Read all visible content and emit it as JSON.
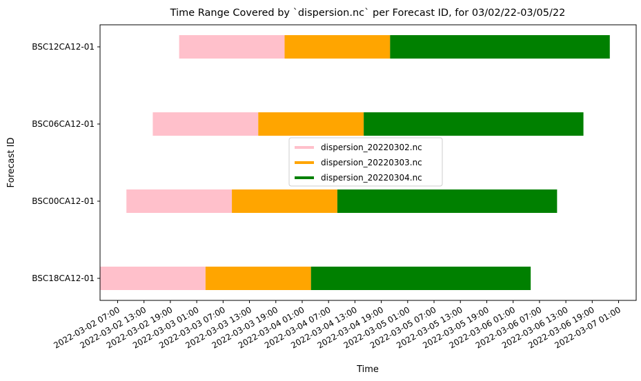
{
  "chart_data": {
    "type": "bar",
    "orientation": "horizontal-range",
    "title": "Time Range Covered by `dispersion.nc` per Forecast ID, for 03/02/22-03/05/22",
    "xlabel": "Time",
    "ylabel": "Forecast ID",
    "xlim": [
      "2022-03-02 03:00",
      "2022-03-07 05:00"
    ],
    "x_ticks": [
      "2022-03-02 07:00",
      "2022-03-02 13:00",
      "2022-03-02 19:00",
      "2022-03-03 01:00",
      "2022-03-03 07:00",
      "2022-03-03 13:00",
      "2022-03-03 19:00",
      "2022-03-04 01:00",
      "2022-03-04 07:00",
      "2022-03-04 13:00",
      "2022-03-04 19:00",
      "2022-03-05 01:00",
      "2022-03-05 07:00",
      "2022-03-05 13:00",
      "2022-03-05 19:00",
      "2022-03-06 01:00",
      "2022-03-06 07:00",
      "2022-03-06 13:00",
      "2022-03-06 19:00",
      "2022-03-07 01:00"
    ],
    "categories": [
      "BSC12CA12-01",
      "BSC06CA12-01",
      "BSC00CA12-01",
      "BSC18CA12-01"
    ],
    "grid": false,
    "legend_position": "center",
    "series": [
      {
        "name": "dispersion_20220302.nc",
        "color": "#ffc0cb",
        "ranges": [
          [
            "2022-03-02 21:00",
            "2022-03-03 21:00"
          ],
          [
            "2022-03-02 15:00",
            "2022-03-03 15:00"
          ],
          [
            "2022-03-02 09:00",
            "2022-03-03 09:00"
          ],
          [
            "2022-03-02 03:00",
            "2022-03-03 03:00"
          ]
        ]
      },
      {
        "name": "dispersion_20220303.nc",
        "color": "#ffa500",
        "ranges": [
          [
            "2022-03-03 21:00",
            "2022-03-04 21:00"
          ],
          [
            "2022-03-03 15:00",
            "2022-03-04 15:00"
          ],
          [
            "2022-03-03 09:00",
            "2022-03-04 09:00"
          ],
          [
            "2022-03-03 03:00",
            "2022-03-04 03:00"
          ]
        ]
      },
      {
        "name": "dispersion_20220304.nc",
        "color": "#008000",
        "ranges": [
          [
            "2022-03-04 21:00",
            "2022-03-06 23:00"
          ],
          [
            "2022-03-04 15:00",
            "2022-03-06 17:00"
          ],
          [
            "2022-03-04 09:00",
            "2022-03-06 11:00"
          ],
          [
            "2022-03-04 03:00",
            "2022-03-06 05:00"
          ]
        ]
      }
    ]
  }
}
